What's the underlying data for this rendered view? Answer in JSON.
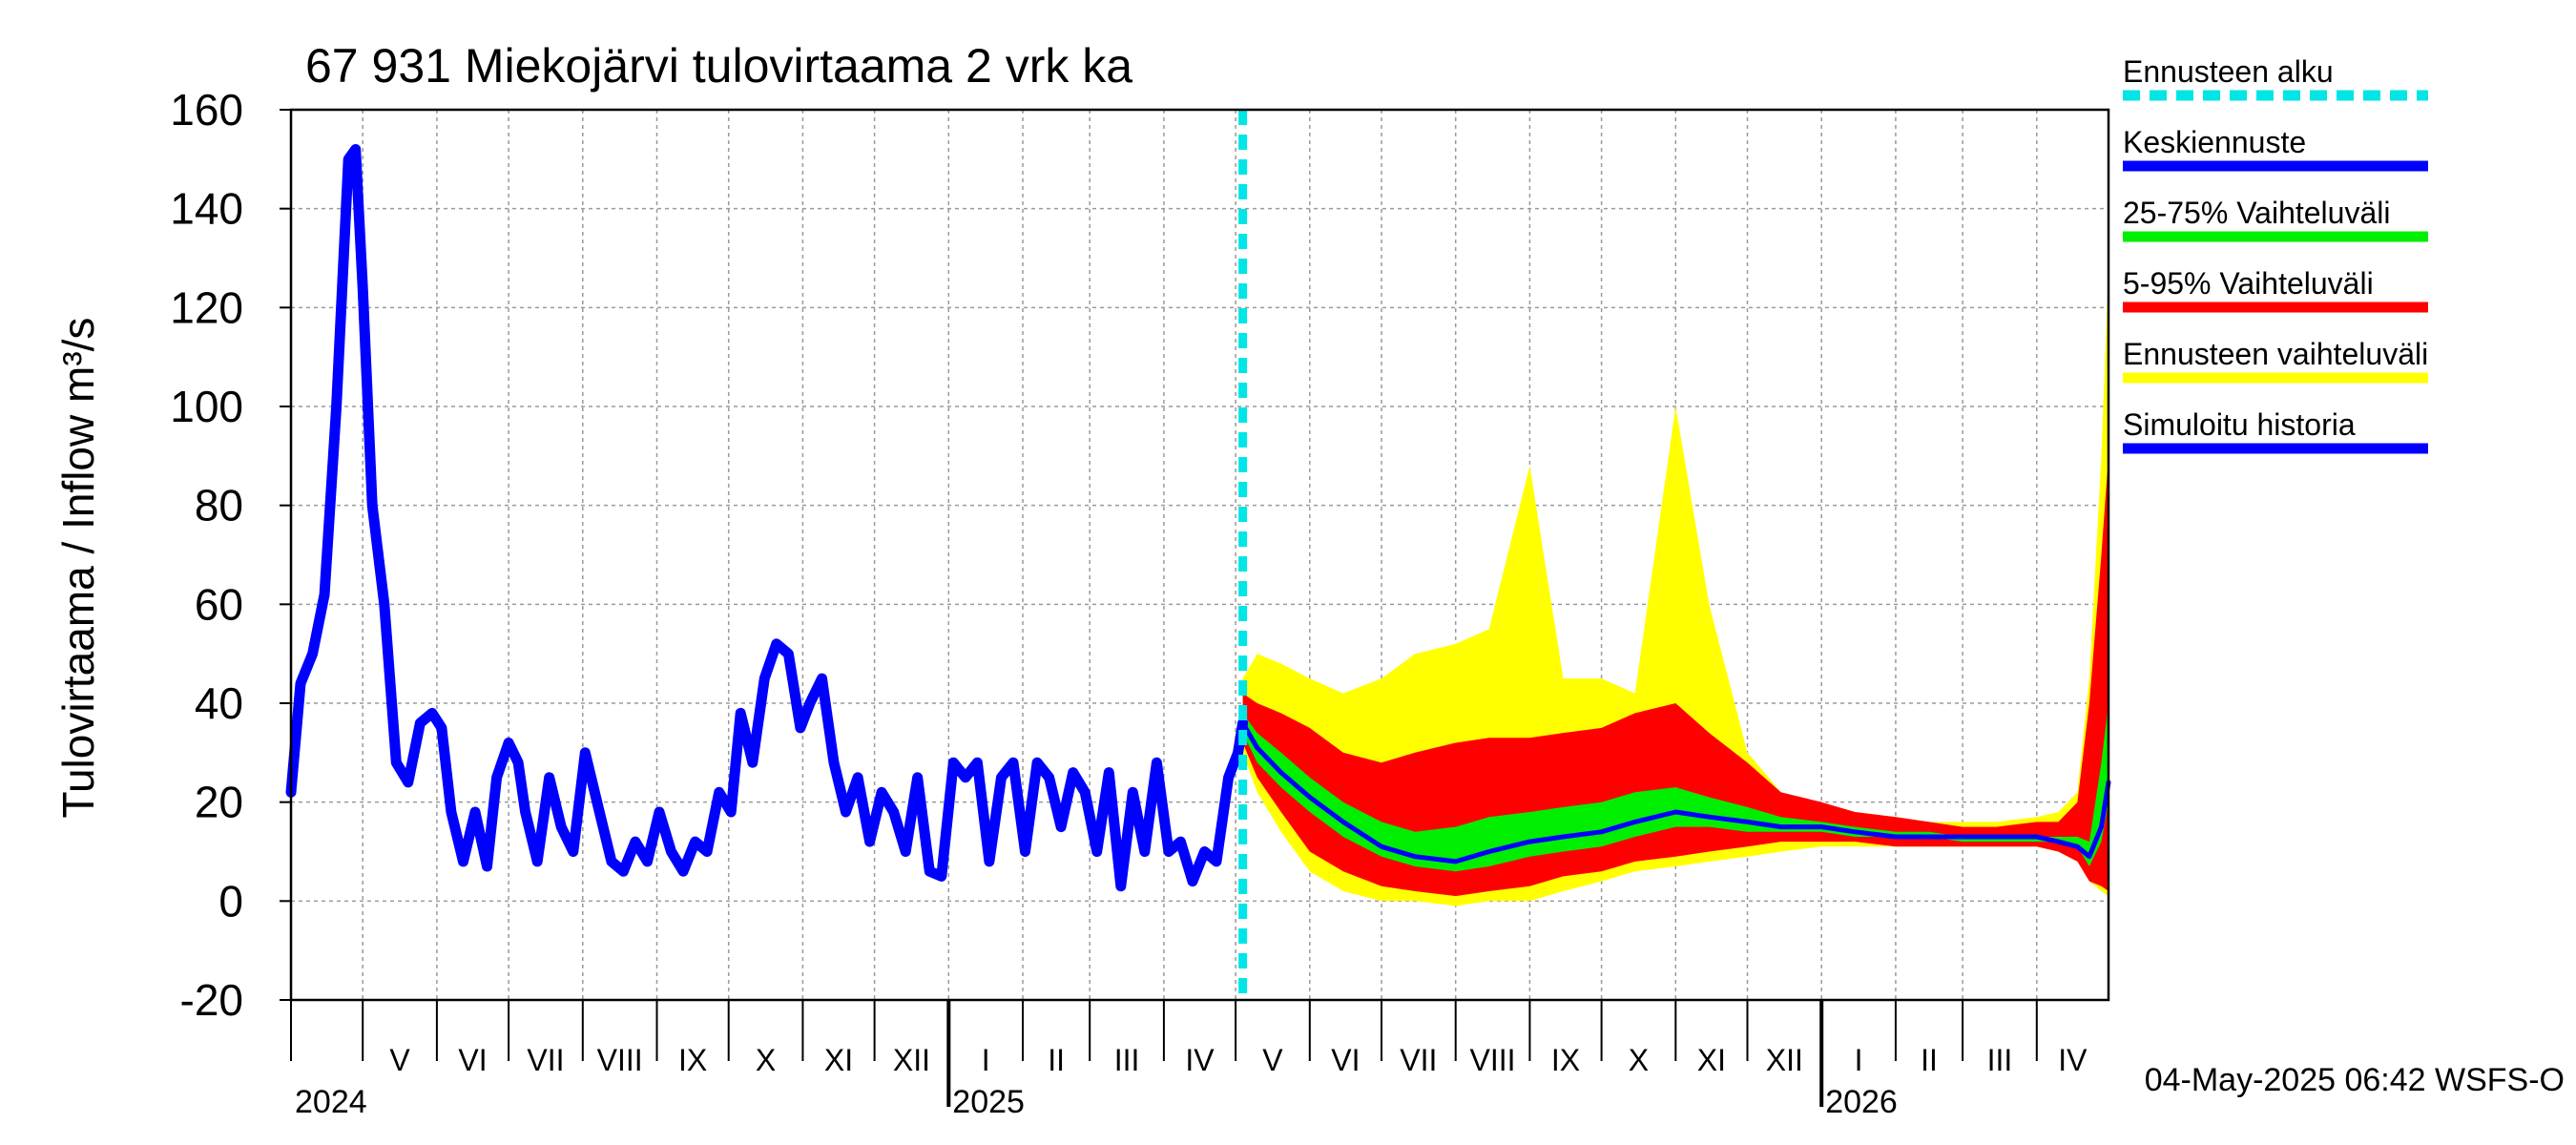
{
  "chart_data": {
    "type": "area",
    "title": "67 931 Miekojärvi tulovirtaama 2 vrk ka",
    "ylabel": "Tulovirtaama / Inflow    m³/s",
    "ylim": [
      -20,
      160
    ],
    "yticks": [
      -20,
      0,
      20,
      40,
      60,
      80,
      100,
      120,
      140,
      160
    ],
    "xlim": [
      "2024-04-01",
      "2026-05-01"
    ],
    "grid": true,
    "legend_position": "right",
    "timestamp": "04-May-2025 06:42 WSFS-O",
    "months": [
      {
        "label": "V",
        "start": "2024-05-01"
      },
      {
        "label": "VI",
        "start": "2024-06-01"
      },
      {
        "label": "VII",
        "start": "2024-07-01"
      },
      {
        "label": "VIII",
        "start": "2024-08-01"
      },
      {
        "label": "IX",
        "start": "2024-09-01"
      },
      {
        "label": "X",
        "start": "2024-10-01"
      },
      {
        "label": "XI",
        "start": "2024-11-01"
      },
      {
        "label": "XII",
        "start": "2024-12-01"
      },
      {
        "label": "I",
        "start": "2025-01-01"
      },
      {
        "label": "II",
        "start": "2025-02-01"
      },
      {
        "label": "III",
        "start": "2025-03-01"
      },
      {
        "label": "IV",
        "start": "2025-04-01"
      },
      {
        "label": "V",
        "start": "2025-05-01"
      },
      {
        "label": "VI",
        "start": "2025-06-01"
      },
      {
        "label": "VII",
        "start": "2025-07-01"
      },
      {
        "label": "VIII",
        "start": "2025-08-01"
      },
      {
        "label": "IX",
        "start": "2025-09-01"
      },
      {
        "label": "X",
        "start": "2025-10-01"
      },
      {
        "label": "XI",
        "start": "2025-11-01"
      },
      {
        "label": "XII",
        "start": "2025-12-01"
      },
      {
        "label": "I",
        "start": "2026-01-01"
      },
      {
        "label": "II",
        "start": "2026-02-01"
      },
      {
        "label": "III",
        "start": "2026-03-01"
      },
      {
        "label": "IV",
        "start": "2026-04-01"
      }
    ],
    "years": [
      {
        "label": "2024",
        "date": "2024-04-01"
      },
      {
        "label": "2025",
        "date": "2025-01-01"
      },
      {
        "label": "2026",
        "date": "2026-01-01"
      }
    ],
    "forecast_start": {
      "date": "2025-05-04"
    },
    "legend": [
      {
        "label": "Ennusteen alku",
        "color": "#00e5e5",
        "style": "dashed"
      },
      {
        "label": "Keskiennuste",
        "color": "#0000ff",
        "style": "solid"
      },
      {
        "label": "25-75% Vaihteluväli",
        "color": "#00ee00",
        "style": "solid"
      },
      {
        "label": "5-95% Vaihteluväli",
        "color": "#ff0000",
        "style": "solid"
      },
      {
        "label": "Ennusteen vaihteluväli",
        "color": "#ffff00",
        "style": "solid"
      },
      {
        "label": "Simuloitu historia",
        "color": "#0000ff",
        "style": "solid"
      }
    ],
    "history": {
      "name": "Simuloitu historia",
      "color": "#0000ff",
      "x": [
        "2024-04-01",
        "2024-04-05",
        "2024-04-10",
        "2024-04-15",
        "2024-04-20",
        "2024-04-25",
        "2024-04-28",
        "2024-05-01",
        "2024-05-05",
        "2024-05-10",
        "2024-05-15",
        "2024-05-20",
        "2024-05-25",
        "2024-05-30",
        "2024-06-03",
        "2024-06-07",
        "2024-06-12",
        "2024-06-17",
        "2024-06-22",
        "2024-06-26",
        "2024-07-01",
        "2024-07-05",
        "2024-07-08",
        "2024-07-13",
        "2024-07-18",
        "2024-07-23",
        "2024-07-28",
        "2024-08-02",
        "2024-08-08",
        "2024-08-13",
        "2024-08-18",
        "2024-08-23",
        "2024-08-28",
        "2024-09-02",
        "2024-09-07",
        "2024-09-12",
        "2024-09-17",
        "2024-09-22",
        "2024-09-27",
        "2024-10-02",
        "2024-10-06",
        "2024-10-11",
        "2024-10-16",
        "2024-10-21",
        "2024-10-26",
        "2024-10-31",
        "2024-11-04",
        "2024-11-09",
        "2024-11-14",
        "2024-11-19",
        "2024-11-24",
        "2024-11-29",
        "2024-12-04",
        "2024-12-09",
        "2024-12-14",
        "2024-12-19",
        "2024-12-24",
        "2024-12-29",
        "2025-01-03",
        "2025-01-08",
        "2025-01-13",
        "2025-01-18",
        "2025-01-23",
        "2025-01-28",
        "2025-02-02",
        "2025-02-07",
        "2025-02-12",
        "2025-02-17",
        "2025-02-22",
        "2025-02-27",
        "2025-03-04",
        "2025-03-09",
        "2025-03-14",
        "2025-03-19",
        "2025-03-24",
        "2025-03-29",
        "2025-04-03",
        "2025-04-08",
        "2025-04-13",
        "2025-04-18",
        "2025-04-23",
        "2025-04-28",
        "2025-05-02",
        "2025-05-04"
      ],
      "y": [
        22,
        44,
        50,
        62,
        100,
        150,
        152,
        124,
        80,
        60,
        28,
        24,
        36,
        38,
        35,
        18,
        8,
        18,
        7,
        25,
        32,
        28,
        18,
        8,
        25,
        15,
        10,
        30,
        18,
        8,
        6,
        12,
        8,
        18,
        10,
        6,
        12,
        10,
        22,
        18,
        38,
        28,
        45,
        52,
        50,
        35,
        40,
        45,
        28,
        18,
        25,
        12,
        22,
        18,
        10,
        25,
        6,
        5,
        28,
        25,
        28,
        8,
        25,
        28,
        10,
        28,
        25,
        15,
        26,
        22,
        10,
        26,
        3,
        22,
        10,
        28,
        10,
        12,
        4,
        10,
        8,
        25,
        30,
        36
      ]
    },
    "forecast": {
      "x": [
        "2025-05-04",
        "2025-05-10",
        "2025-05-20",
        "2025-06-01",
        "2025-06-15",
        "2025-07-01",
        "2025-07-15",
        "2025-08-01",
        "2025-08-15",
        "2025-09-01",
        "2025-09-15",
        "2025-10-01",
        "2025-10-15",
        "2025-11-01",
        "2025-11-15",
        "2025-12-01",
        "2025-12-15",
        "2026-01-01",
        "2026-01-15",
        "2026-02-01",
        "2026-02-15",
        "2026-03-01",
        "2026-03-15",
        "2026-04-01",
        "2026-04-10",
        "2026-04-18",
        "2026-04-23",
        "2026-04-28",
        "2026-05-01"
      ],
      "median": [
        36,
        31,
        26,
        21,
        16,
        11,
        9,
        8,
        10,
        12,
        13,
        14,
        16,
        18,
        17,
        16,
        15,
        15,
        14,
        13,
        13,
        13,
        13,
        13,
        12,
        11,
        9,
        15,
        24
      ],
      "p25": [
        34,
        28,
        23,
        18,
        13,
        9,
        7,
        6,
        7,
        9,
        10,
        11,
        13,
        15,
        15,
        14,
        14,
        14,
        13,
        13,
        13,
        12,
        12,
        12,
        12,
        11,
        7,
        12,
        20
      ],
      "p75": [
        38,
        34,
        30,
        25,
        20,
        16,
        14,
        15,
        17,
        18,
        19,
        20,
        22,
        23,
        21,
        19,
        17,
        16,
        15,
        14,
        14,
        13,
        13,
        13,
        13,
        13,
        12,
        28,
        40
      ],
      "p5": [
        32,
        25,
        18,
        10,
        6,
        3,
        2,
        1,
        2,
        3,
        5,
        6,
        8,
        9,
        10,
        11,
        12,
        12,
        12,
        11,
        11,
        11,
        11,
        11,
        10,
        8,
        4,
        3,
        2
      ],
      "p95": [
        42,
        40,
        38,
        35,
        30,
        28,
        30,
        32,
        33,
        33,
        34,
        35,
        38,
        40,
        34,
        28,
        22,
        20,
        18,
        17,
        16,
        15,
        15,
        16,
        16,
        20,
        40,
        70,
        90
      ],
      "min": [
        30,
        22,
        14,
        6,
        2,
        0,
        0,
        -1,
        0,
        0,
        2,
        4,
        6,
        7,
        8,
        9,
        10,
        11,
        11,
        11,
        11,
        11,
        11,
        11,
        10,
        8,
        4,
        2,
        1
      ],
      "max": [
        45,
        50,
        48,
        45,
        42,
        45,
        50,
        52,
        55,
        88,
        45,
        45,
        42,
        100,
        60,
        30,
        22,
        19,
        18,
        17,
        16,
        16,
        16,
        17,
        18,
        22,
        45,
        90,
        128
      ]
    }
  }
}
